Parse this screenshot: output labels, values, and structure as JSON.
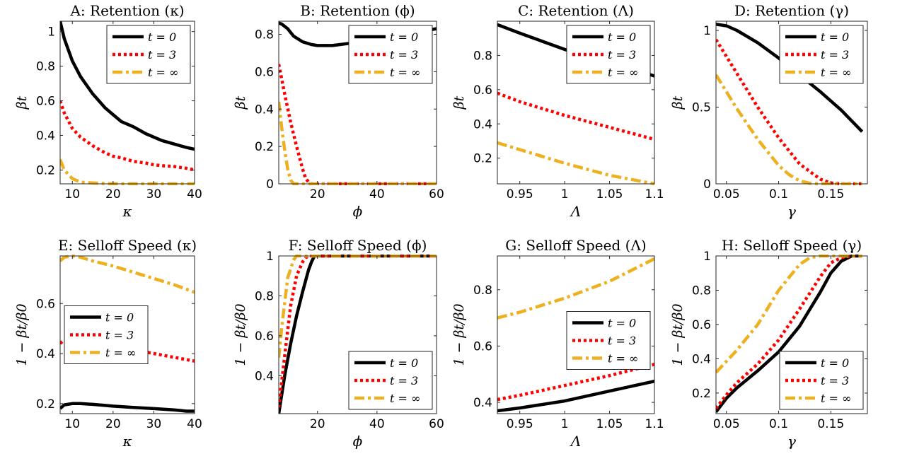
{
  "legend_labels": [
    "t = 0",
    "t = 3",
    "t = ∞"
  ],
  "styles": [
    {
      "color": "#000000",
      "dash": "none",
      "width": 4.5
    },
    {
      "color": "#ff0000",
      "dash": "4 4",
      "width": 4.5
    },
    {
      "color": "#edb120",
      "dash": "14 5 4 5",
      "width": 4.5
    }
  ],
  "chart_data": [
    {
      "type": "line",
      "title": "A: Retention (κ)",
      "xlabel": "κ",
      "ylabel": "βt",
      "xlim": [
        7,
        40
      ],
      "ylim": [
        0.12,
        1.06
      ],
      "xticks": [
        10,
        20,
        30,
        40
      ],
      "yticks": [
        0.2,
        0.4,
        0.6,
        0.8,
        1
      ],
      "legend": "upper-right",
      "series": [
        {
          "name": "t = 0",
          "x": [
            7,
            8,
            10,
            12,
            15,
            18,
            20,
            22,
            25,
            28,
            30,
            32,
            35,
            38,
            40
          ],
          "y": [
            1.06,
            0.96,
            0.83,
            0.74,
            0.64,
            0.56,
            0.52,
            0.48,
            0.45,
            0.41,
            0.39,
            0.37,
            0.35,
            0.33,
            0.32
          ]
        },
        {
          "name": "t = 3",
          "x": [
            7,
            8,
            10,
            12,
            15,
            18,
            20,
            22,
            25,
            28,
            30,
            32,
            35,
            38,
            40
          ],
          "y": [
            0.6,
            0.53,
            0.44,
            0.39,
            0.34,
            0.3,
            0.28,
            0.27,
            0.25,
            0.24,
            0.23,
            0.225,
            0.22,
            0.21,
            0.2
          ]
        },
        {
          "name": "t = ∞",
          "x": [
            7,
            8,
            10,
            12,
            15,
            18,
            20,
            25,
            30,
            40
          ],
          "y": [
            0.26,
            0.2,
            0.15,
            0.13,
            0.125,
            0.122,
            0.12,
            0.12,
            0.12,
            0.12
          ]
        }
      ]
    },
    {
      "type": "line",
      "title": "B: Retention (ϕ)",
      "xlabel": "ϕ",
      "ylabel": "βt",
      "xlim": [
        7,
        60
      ],
      "ylim": [
        0,
        0.87
      ],
      "xticks": [
        20,
        40,
        60
      ],
      "yticks": [
        0,
        0.2,
        0.4,
        0.6,
        0.8
      ],
      "legend": "upper-right",
      "series": [
        {
          "name": "t = 0",
          "x": [
            7,
            8,
            10,
            12,
            15,
            18,
            20,
            25,
            30,
            35,
            40,
            45,
            50,
            55,
            60
          ],
          "y": [
            0.86,
            0.855,
            0.83,
            0.79,
            0.76,
            0.745,
            0.74,
            0.74,
            0.75,
            0.76,
            0.775,
            0.785,
            0.8,
            0.815,
            0.83
          ]
        },
        {
          "name": "t = 3",
          "x": [
            7,
            9,
            11,
            13,
            15,
            16,
            17,
            18,
            20,
            60
          ],
          "y": [
            0.64,
            0.48,
            0.33,
            0.2,
            0.08,
            0.03,
            0.01,
            0,
            0,
            0
          ]
        },
        {
          "name": "t = ∞",
          "x": [
            7,
            8,
            9,
            10,
            11,
            12,
            13,
            60
          ],
          "y": [
            0.44,
            0.3,
            0.18,
            0.08,
            0.02,
            0,
            0,
            0
          ]
        }
      ]
    },
    {
      "type": "line",
      "title": "C: Retention (Λ)",
      "xlabel": "Λ",
      "ylabel": "βt",
      "xlim": [
        0.925,
        1.1
      ],
      "ylim": [
        0.05,
        1.0
      ],
      "xticks": [
        0.95,
        1,
        1.05,
        1.1
      ],
      "yticks": [
        0.2,
        0.4,
        0.6,
        0.8
      ],
      "legend": "upper-right",
      "series": [
        {
          "name": "t = 0",
          "x": [
            0.925,
            0.95,
            1.0,
            1.05,
            1.1
          ],
          "y": [
            0.98,
            0.93,
            0.835,
            0.76,
            0.68
          ]
        },
        {
          "name": "t = 3",
          "x": [
            0.925,
            0.95,
            1.0,
            1.05,
            1.1
          ],
          "y": [
            0.58,
            0.53,
            0.45,
            0.38,
            0.31
          ]
        },
        {
          "name": "t = ∞",
          "x": [
            0.925,
            0.95,
            1.0,
            1.05,
            1.1
          ],
          "y": [
            0.29,
            0.25,
            0.17,
            0.1,
            0.05
          ]
        }
      ]
    },
    {
      "type": "line",
      "title": "D: Retention (γ)",
      "xlabel": "γ",
      "ylabel": "βt",
      "xlim": [
        0.04,
        0.185
      ],
      "ylim": [
        0,
        1.06
      ],
      "xticks": [
        0.05,
        0.1,
        0.15
      ],
      "yticks": [
        0,
        0.5,
        1
      ],
      "legend": "upper-right",
      "series": [
        {
          "name": "t = 0",
          "x": [
            0.04,
            0.05,
            0.06,
            0.08,
            0.1,
            0.12,
            0.14,
            0.16,
            0.18
          ],
          "y": [
            1.04,
            1.03,
            1.0,
            0.92,
            0.82,
            0.71,
            0.6,
            0.48,
            0.34
          ]
        },
        {
          "name": "t = 3",
          "x": [
            0.04,
            0.05,
            0.06,
            0.08,
            0.1,
            0.12,
            0.14,
            0.15,
            0.16,
            0.17,
            0.18
          ],
          "y": [
            0.94,
            0.83,
            0.72,
            0.5,
            0.3,
            0.13,
            0.03,
            0.005,
            0,
            0,
            0
          ]
        },
        {
          "name": "t = ∞",
          "x": [
            0.04,
            0.05,
            0.06,
            0.08,
            0.1,
            0.11,
            0.12,
            0.13,
            0.14,
            0.18
          ],
          "y": [
            0.71,
            0.6,
            0.49,
            0.29,
            0.12,
            0.06,
            0.02,
            0.003,
            0,
            0
          ]
        }
      ]
    },
    {
      "type": "line",
      "title": "E: Selloff Speed (κ)",
      "xlabel": "κ",
      "ylabel": "1 − βt/β0",
      "xlim": [
        7,
        40
      ],
      "ylim": [
        0.16,
        0.79
      ],
      "xticks": [
        10,
        20,
        30,
        40
      ],
      "yticks": [
        0.2,
        0.4,
        0.6
      ],
      "legend": "center-left",
      "series": [
        {
          "name": "t = 0",
          "x": [
            7,
            8,
            10,
            12,
            15,
            20,
            25,
            30,
            35,
            38,
            40
          ],
          "y": [
            0.18,
            0.195,
            0.2,
            0.2,
            0.197,
            0.19,
            0.185,
            0.18,
            0.175,
            0.17,
            0.17
          ]
        },
        {
          "name": "t = 3",
          "x": [
            7,
            8,
            10,
            12,
            15,
            20,
            25,
            30,
            35,
            40
          ],
          "y": [
            0.44,
            0.455,
            0.46,
            0.455,
            0.445,
            0.43,
            0.415,
            0.4,
            0.385,
            0.37
          ]
        },
        {
          "name": "t = ∞",
          "x": [
            7,
            8,
            10,
            12,
            15,
            20,
            25,
            30,
            35,
            40
          ],
          "y": [
            0.77,
            0.785,
            0.79,
            0.785,
            0.77,
            0.75,
            0.725,
            0.7,
            0.675,
            0.645
          ]
        }
      ]
    },
    {
      "type": "line",
      "title": "F: Selloff Speed (ϕ)",
      "xlabel": "ϕ",
      "ylabel": "1 − βt/β0",
      "xlim": [
        7,
        60
      ],
      "ylim": [
        0.21,
        1.0
      ],
      "xticks": [
        20,
        40,
        60
      ],
      "yticks": [
        0.4,
        0.6,
        0.8,
        1
      ],
      "legend": "lower-right",
      "series": [
        {
          "name": "t = 0",
          "x": [
            7,
            9,
            11,
            13,
            15,
            17,
            18,
            19,
            20,
            60
          ],
          "y": [
            0.21,
            0.4,
            0.56,
            0.7,
            0.82,
            0.93,
            0.97,
            1,
            1,
            1
          ]
        },
        {
          "name": "t = 3",
          "x": [
            7,
            9,
            11,
            13,
            15,
            16,
            17,
            60
          ],
          "y": [
            0.24,
            0.5,
            0.75,
            0.9,
            0.97,
            0.99,
            1,
            1
          ]
        },
        {
          "name": "t = ∞",
          "x": [
            7,
            8,
            10,
            12,
            13,
            14,
            60
          ],
          "y": [
            0.49,
            0.64,
            0.89,
            0.98,
            1,
            1,
            1
          ]
        }
      ]
    },
    {
      "type": "line",
      "title": "G: Selloff Speed (Λ)",
      "xlabel": "Λ",
      "ylabel": "1 − βt/β0",
      "xlim": [
        0.925,
        1.1
      ],
      "ylim": [
        0.36,
        0.92
      ],
      "xticks": [
        0.95,
        1,
        1.05,
        1.1
      ],
      "yticks": [
        0.4,
        0.6,
        0.8
      ],
      "legend": "center-right",
      "series": [
        {
          "name": "t = 0",
          "x": [
            0.925,
            0.95,
            1.0,
            1.05,
            1.1
          ],
          "y": [
            0.37,
            0.38,
            0.405,
            0.44,
            0.475
          ]
        },
        {
          "name": "t = 3",
          "x": [
            0.925,
            0.95,
            1.0,
            1.05,
            1.1
          ],
          "y": [
            0.41,
            0.425,
            0.46,
            0.495,
            0.535
          ]
        },
        {
          "name": "t = ∞",
          "x": [
            0.925,
            0.95,
            1.0,
            1.05,
            1.1
          ],
          "y": [
            0.7,
            0.72,
            0.77,
            0.83,
            0.91
          ]
        }
      ]
    },
    {
      "type": "line",
      "title": "H: Selloff Speed (γ)",
      "xlabel": "γ",
      "ylabel": "1 − βt/β0",
      "xlim": [
        0.04,
        0.185
      ],
      "ylim": [
        0.08,
        1.0
      ],
      "xticks": [
        0.05,
        0.1,
        0.15
      ],
      "yticks": [
        0.2,
        0.4,
        0.6,
        0.8,
        1
      ],
      "legend": "lower-right",
      "series": [
        {
          "name": "t = 0",
          "x": [
            0.04,
            0.05,
            0.06,
            0.08,
            0.1,
            0.12,
            0.14,
            0.15,
            0.16,
            0.17,
            0.18
          ],
          "y": [
            0.09,
            0.17,
            0.23,
            0.33,
            0.44,
            0.59,
            0.79,
            0.9,
            0.97,
            1,
            1
          ]
        },
        {
          "name": "t = 3",
          "x": [
            0.04,
            0.05,
            0.06,
            0.08,
            0.1,
            0.12,
            0.14,
            0.15,
            0.16,
            0.17,
            0.18
          ],
          "y": [
            0.11,
            0.19,
            0.26,
            0.37,
            0.51,
            0.69,
            0.88,
            0.96,
            0.99,
            1,
            1
          ]
        },
        {
          "name": "t = ∞",
          "x": [
            0.04,
            0.06,
            0.08,
            0.1,
            0.12,
            0.13,
            0.14,
            0.15,
            0.18
          ],
          "y": [
            0.32,
            0.45,
            0.6,
            0.8,
            0.95,
            0.99,
            1,
            1,
            1
          ]
        }
      ]
    }
  ]
}
